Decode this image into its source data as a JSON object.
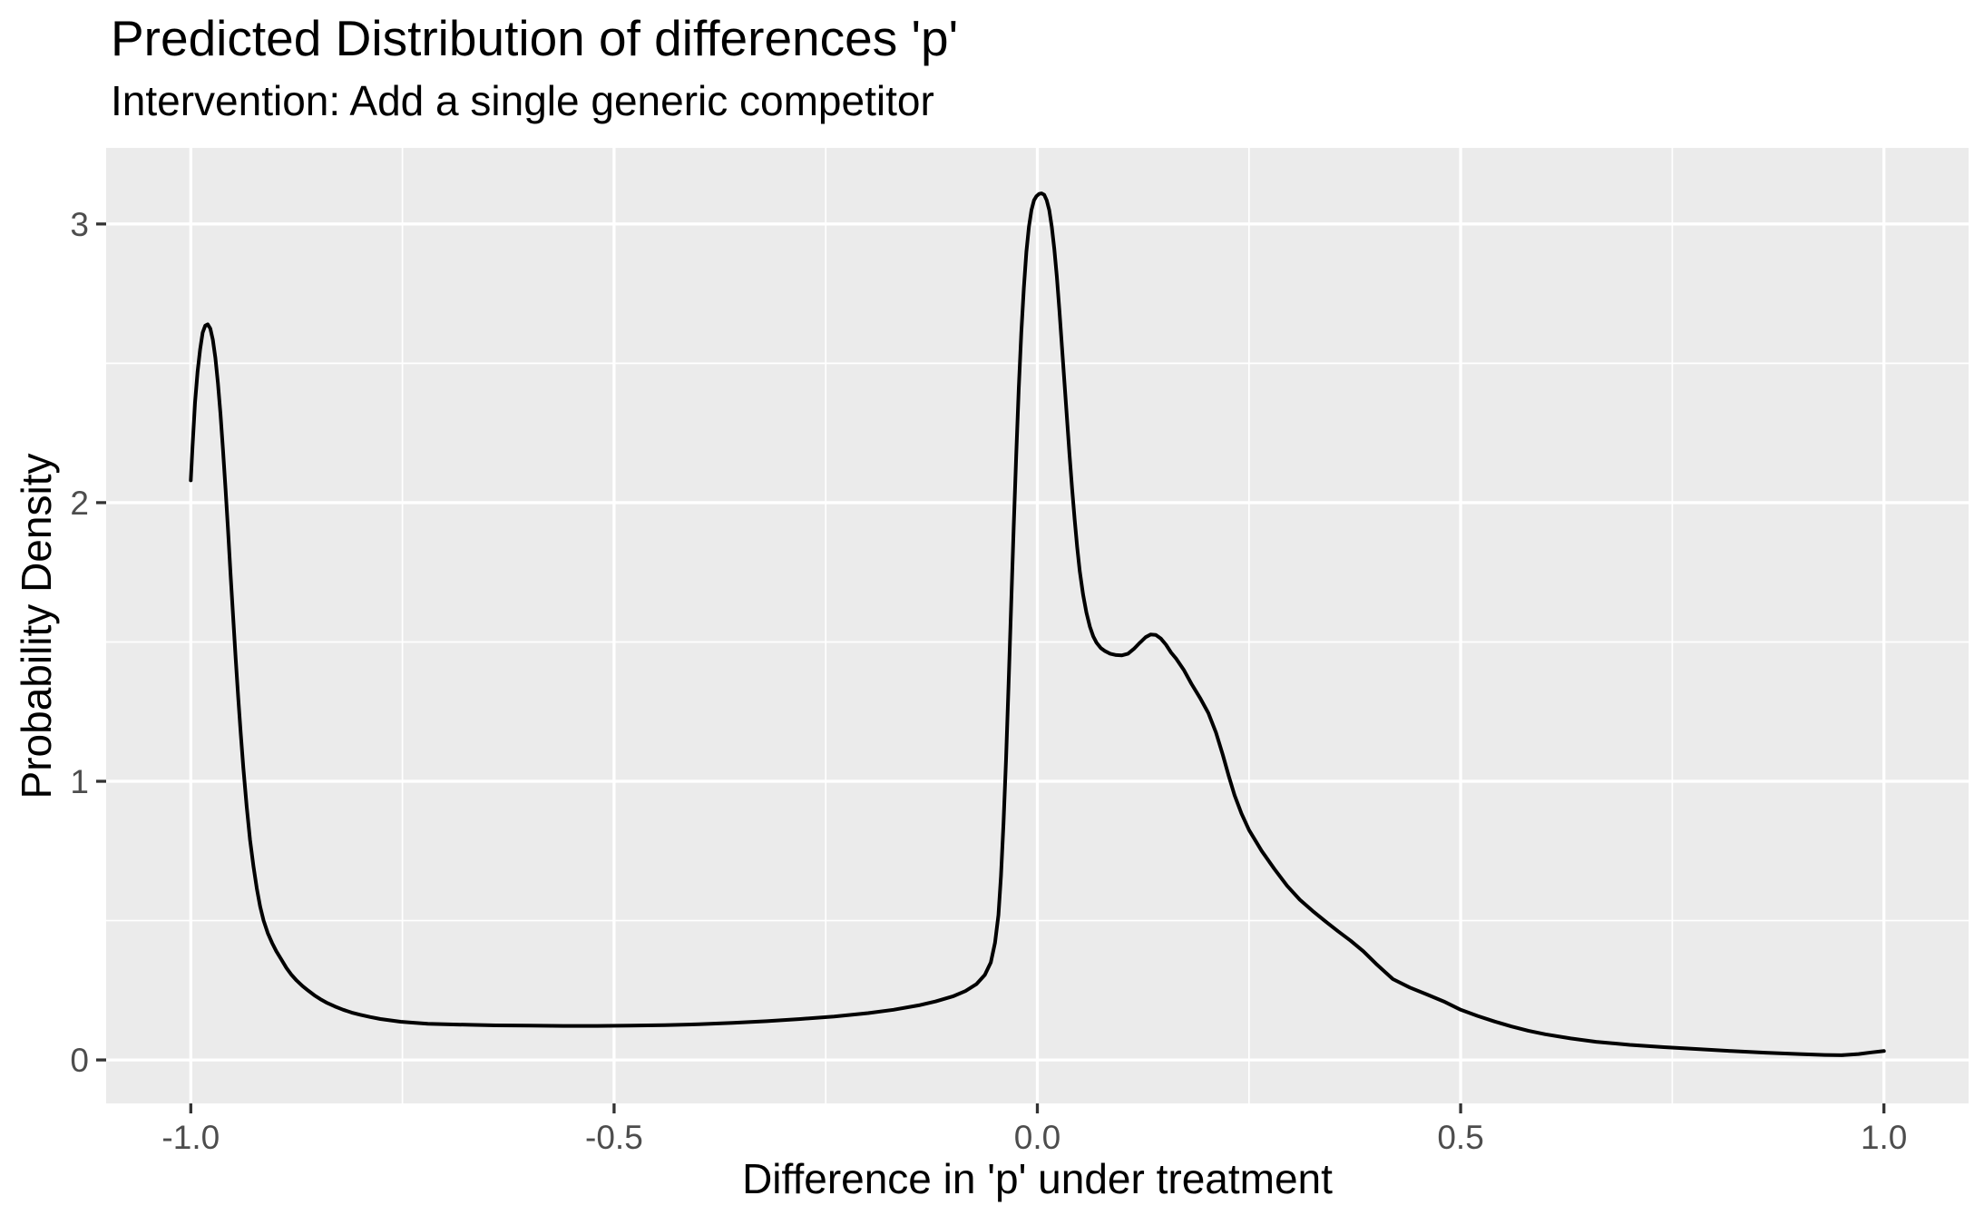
{
  "style": {
    "panel_background": "#EBEBEB",
    "grid_color": "#FFFFFF",
    "tick_mark_color": "#333333",
    "tick_label_color": "#4D4D4D",
    "text_color": "#000000",
    "curve_color": "#000000"
  },
  "chart_data": {
    "type": "line",
    "title": "Predicted Distribution of differences 'p'",
    "subtitle": "Intervention: Add a single generic competitor",
    "xlabel": "Difference in 'p' under treatment",
    "ylabel": "Probability Density",
    "legend": "none",
    "grid": true,
    "xlim": [
      -1.1,
      1.1
    ],
    "ylim": [
      -0.156,
      3.273
    ],
    "x_ticks": {
      "values": [
        -1.0,
        -0.5,
        0.0,
        0.5,
        1.0
      ],
      "labels": [
        "-1.0",
        "-0.5",
        "0.0",
        "0.5",
        "1.0"
      ]
    },
    "y_ticks": {
      "values": [
        0,
        1,
        2,
        3
      ],
      "labels": [
        "0",
        "1",
        "2",
        "3"
      ]
    },
    "x_minor": [
      -0.75,
      -0.25,
      0.25,
      0.75
    ],
    "y_minor": [
      0.5,
      1.5,
      2.5
    ],
    "series": [
      {
        "name": "density",
        "color": "#000000",
        "points": [
          [
            -1.0,
            2.08
          ],
          [
            -0.998,
            2.2
          ],
          [
            -0.995,
            2.36
          ],
          [
            -0.992,
            2.47
          ],
          [
            -0.989,
            2.55
          ],
          [
            -0.986,
            2.61
          ],
          [
            -0.983,
            2.635
          ],
          [
            -0.98,
            2.64
          ],
          [
            -0.977,
            2.625
          ],
          [
            -0.974,
            2.585
          ],
          [
            -0.971,
            2.52
          ],
          [
            -0.968,
            2.43
          ],
          [
            -0.965,
            2.32
          ],
          [
            -0.962,
            2.19
          ],
          [
            -0.959,
            2.05
          ],
          [
            -0.956,
            1.9
          ],
          [
            -0.953,
            1.74
          ],
          [
            -0.95,
            1.59
          ],
          [
            -0.947,
            1.44
          ],
          [
            -0.944,
            1.3
          ],
          [
            -0.941,
            1.17
          ],
          [
            -0.938,
            1.05
          ],
          [
            -0.934,
            0.91
          ],
          [
            -0.93,
            0.79
          ],
          [
            -0.926,
            0.695
          ],
          [
            -0.922,
            0.615
          ],
          [
            -0.918,
            0.55
          ],
          [
            -0.914,
            0.5
          ],
          [
            -0.909,
            0.455
          ],
          [
            -0.904,
            0.42
          ],
          [
            -0.899,
            0.39
          ],
          [
            -0.893,
            0.36
          ],
          [
            -0.887,
            0.33
          ],
          [
            -0.881,
            0.305
          ],
          [
            -0.875,
            0.285
          ],
          [
            -0.868,
            0.265
          ],
          [
            -0.861,
            0.248
          ],
          [
            -0.854,
            0.232
          ],
          [
            -0.847,
            0.218
          ],
          [
            -0.84,
            0.206
          ],
          [
            -0.83,
            0.192
          ],
          [
            -0.82,
            0.18
          ],
          [
            -0.81,
            0.17
          ],
          [
            -0.8,
            0.162
          ],
          [
            -0.788,
            0.154
          ],
          [
            -0.776,
            0.147
          ],
          [
            -0.764,
            0.142
          ],
          [
            -0.752,
            0.137
          ],
          [
            -0.74,
            0.134
          ],
          [
            -0.72,
            0.13
          ],
          [
            -0.7,
            0.128
          ],
          [
            -0.67,
            0.126
          ],
          [
            -0.64,
            0.124
          ],
          [
            -0.6,
            0.123
          ],
          [
            -0.56,
            0.122
          ],
          [
            -0.52,
            0.122
          ],
          [
            -0.48,
            0.123
          ],
          [
            -0.44,
            0.125
          ],
          [
            -0.4,
            0.128
          ],
          [
            -0.36,
            0.133
          ],
          [
            -0.32,
            0.139
          ],
          [
            -0.28,
            0.147
          ],
          [
            -0.24,
            0.156
          ],
          [
            -0.2,
            0.168
          ],
          [
            -0.17,
            0.18
          ],
          [
            -0.14,
            0.196
          ],
          [
            -0.12,
            0.21
          ],
          [
            -0.1,
            0.228
          ],
          [
            -0.085,
            0.247
          ],
          [
            -0.072,
            0.272
          ],
          [
            -0.062,
            0.305
          ],
          [
            -0.055,
            0.35
          ],
          [
            -0.05,
            0.42
          ],
          [
            -0.046,
            0.52
          ],
          [
            -0.043,
            0.66
          ],
          [
            -0.04,
            0.85
          ],
          [
            -0.037,
            1.08
          ],
          [
            -0.034,
            1.35
          ],
          [
            -0.031,
            1.63
          ],
          [
            -0.028,
            1.91
          ],
          [
            -0.025,
            2.17
          ],
          [
            -0.022,
            2.41
          ],
          [
            -0.019,
            2.61
          ],
          [
            -0.016,
            2.77
          ],
          [
            -0.013,
            2.9
          ],
          [
            -0.01,
            2.99
          ],
          [
            -0.007,
            3.05
          ],
          [
            -0.004,
            3.085
          ],
          [
            -0.001,
            3.1
          ],
          [
            0.002,
            3.108
          ],
          [
            0.005,
            3.11
          ],
          [
            0.008,
            3.105
          ],
          [
            0.011,
            3.085
          ],
          [
            0.014,
            3.05
          ],
          [
            0.017,
            2.99
          ],
          [
            0.02,
            2.91
          ],
          [
            0.023,
            2.81
          ],
          [
            0.026,
            2.69
          ],
          [
            0.029,
            2.56
          ],
          [
            0.032,
            2.43
          ],
          [
            0.035,
            2.3
          ],
          [
            0.038,
            2.17
          ],
          [
            0.041,
            2.05
          ],
          [
            0.044,
            1.94
          ],
          [
            0.047,
            1.84
          ],
          [
            0.05,
            1.755
          ],
          [
            0.054,
            1.67
          ],
          [
            0.058,
            1.605
          ],
          [
            0.062,
            1.555
          ],
          [
            0.066,
            1.52
          ],
          [
            0.07,
            1.497
          ],
          [
            0.075,
            1.478
          ],
          [
            0.08,
            1.467
          ],
          [
            0.086,
            1.458
          ],
          [
            0.093,
            1.453
          ],
          [
            0.1,
            1.452
          ],
          [
            0.107,
            1.458
          ],
          [
            0.114,
            1.475
          ],
          [
            0.121,
            1.497
          ],
          [
            0.128,
            1.517
          ],
          [
            0.134,
            1.527
          ],
          [
            0.14,
            1.525
          ],
          [
            0.146,
            1.512
          ],
          [
            0.152,
            1.49
          ],
          [
            0.158,
            1.462
          ],
          [
            0.164,
            1.44
          ],
          [
            0.173,
            1.4
          ],
          [
            0.182,
            1.35
          ],
          [
            0.192,
            1.3
          ],
          [
            0.202,
            1.245
          ],
          [
            0.211,
            1.175
          ],
          [
            0.219,
            1.095
          ],
          [
            0.226,
            1.02
          ],
          [
            0.233,
            0.95
          ],
          [
            0.241,
            0.885
          ],
          [
            0.25,
            0.825
          ],
          [
            0.265,
            0.75
          ],
          [
            0.28,
            0.685
          ],
          [
            0.295,
            0.625
          ],
          [
            0.31,
            0.575
          ],
          [
            0.325,
            0.535
          ],
          [
            0.34,
            0.498
          ],
          [
            0.355,
            0.462
          ],
          [
            0.37,
            0.428
          ],
          [
            0.385,
            0.39
          ],
          [
            0.4,
            0.345
          ],
          [
            0.42,
            0.29
          ],
          [
            0.44,
            0.26
          ],
          [
            0.46,
            0.235
          ],
          [
            0.48,
            0.21
          ],
          [
            0.5,
            0.18
          ],
          [
            0.52,
            0.158
          ],
          [
            0.54,
            0.138
          ],
          [
            0.56,
            0.12
          ],
          [
            0.58,
            0.105
          ],
          [
            0.6,
            0.092
          ],
          [
            0.63,
            0.077
          ],
          [
            0.66,
            0.065
          ],
          [
            0.7,
            0.054
          ],
          [
            0.74,
            0.046
          ],
          [
            0.78,
            0.039
          ],
          [
            0.82,
            0.032
          ],
          [
            0.86,
            0.026
          ],
          [
            0.9,
            0.021
          ],
          [
            0.93,
            0.018
          ],
          [
            0.95,
            0.017
          ],
          [
            0.97,
            0.021
          ],
          [
            0.985,
            0.027
          ],
          [
            1.0,
            0.032
          ]
        ]
      }
    ]
  }
}
